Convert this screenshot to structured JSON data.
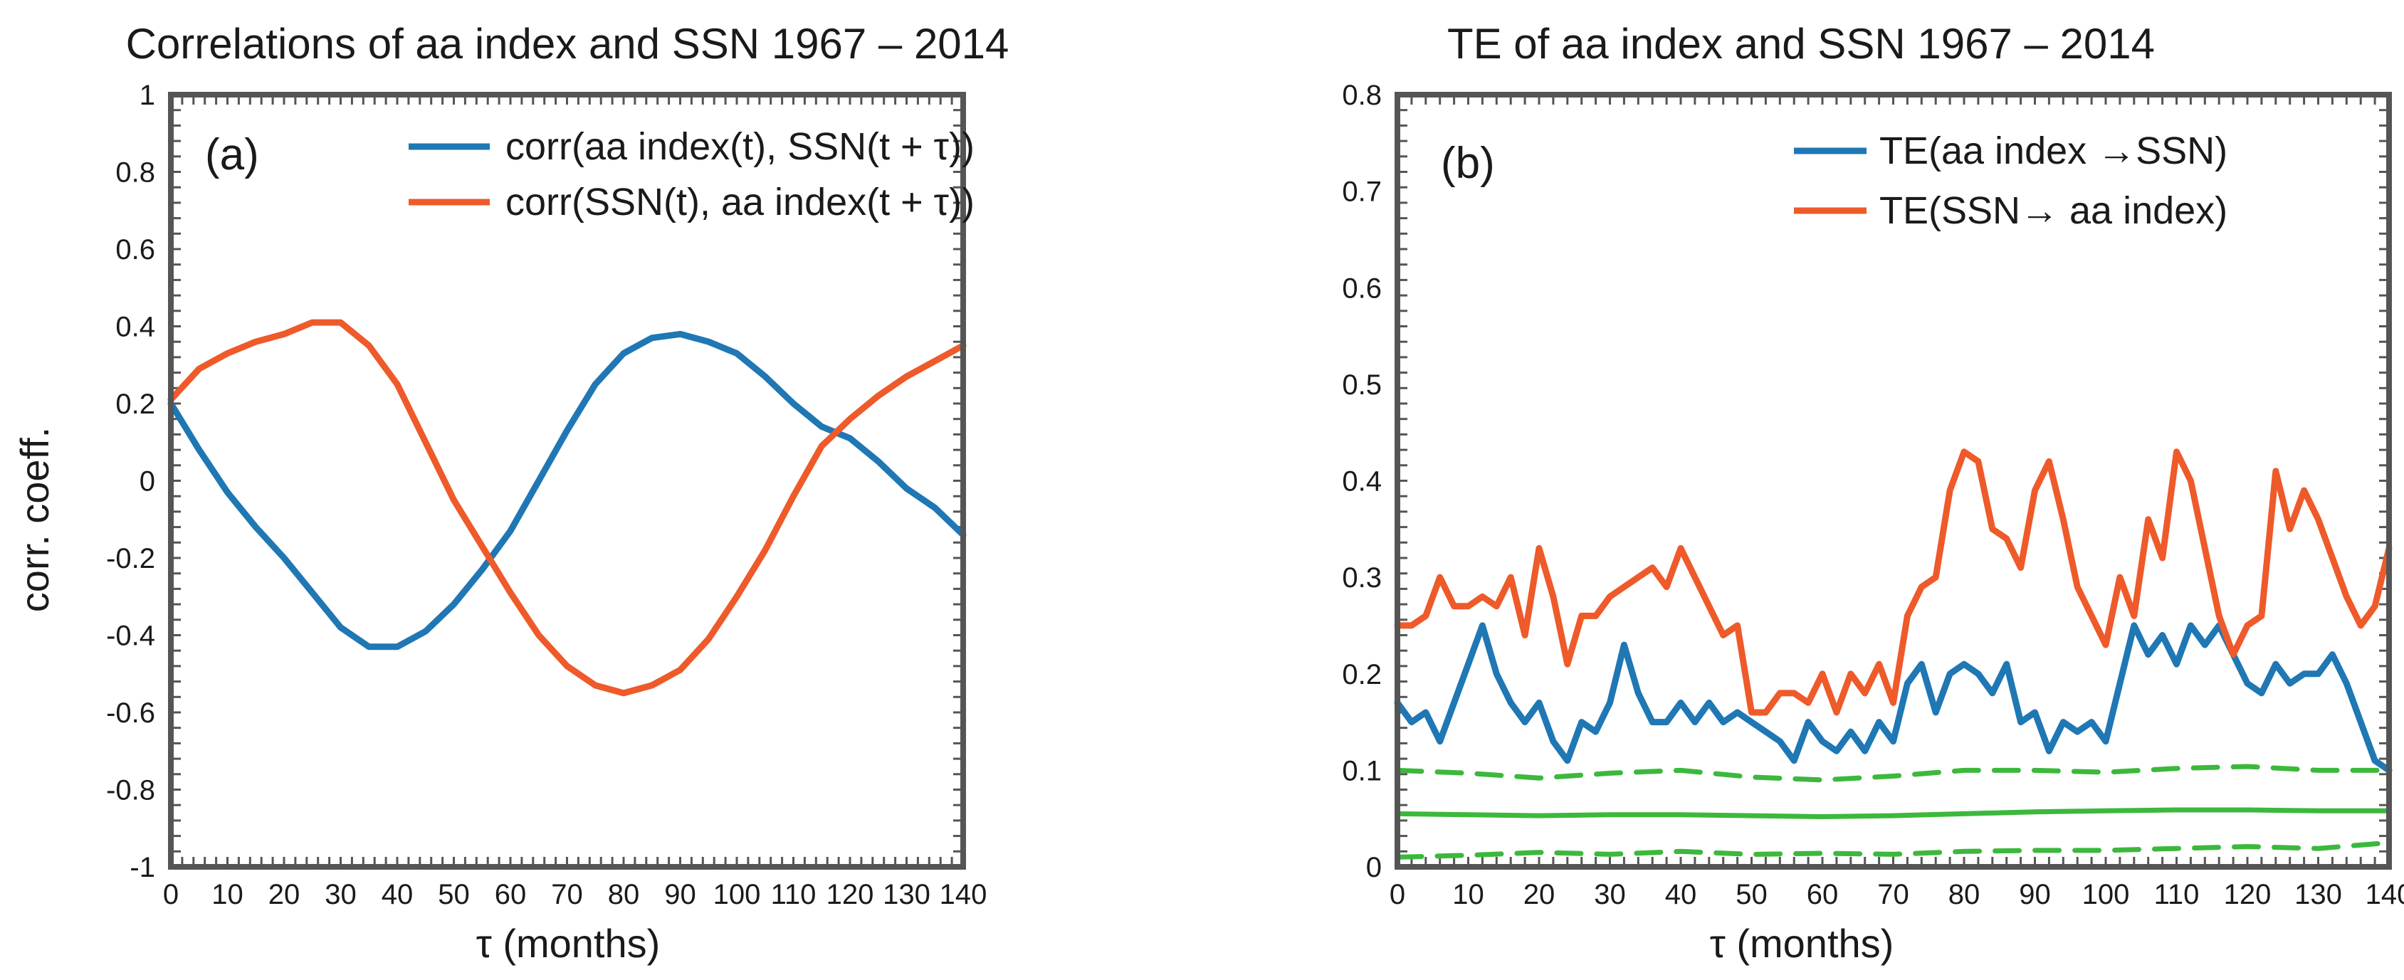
{
  "chart_data": [
    {
      "type": "line",
      "panel_label": "(a)",
      "title": "Correlations of aa index and SSN  1967 – 2014",
      "xlabel": "τ (months)",
      "ylabel": "corr. coeff.",
      "xlim": [
        0,
        140
      ],
      "ylim": [
        -1,
        1
      ],
      "xticks": [
        "0",
        "10",
        "20",
        "30",
        "40",
        "50",
        "60",
        "70",
        "80",
        "90",
        "100",
        "110",
        "120",
        "130",
        "140"
      ],
      "yticks": [
        "1",
        "0.8",
        "0.6",
        "0.4",
        "0.2",
        "0",
        "-0.2",
        "-0.4",
        "-0.6",
        "-0.8",
        "-1"
      ],
      "legend_position": "top-right",
      "series": [
        {
          "name": "corr(aa index(t), SSN(t + τ))",
          "color": "#1f77b4",
          "x": [
            0,
            5,
            10,
            15,
            20,
            25,
            30,
            35,
            40,
            45,
            50,
            55,
            60,
            65,
            70,
            75,
            80,
            85,
            90,
            95,
            100,
            105,
            110,
            115,
            120,
            125,
            130,
            135,
            140
          ],
          "y": [
            0.2,
            0.08,
            -0.03,
            -0.12,
            -0.2,
            -0.29,
            -0.38,
            -0.43,
            -0.43,
            -0.39,
            -0.32,
            -0.23,
            -0.13,
            0.0,
            0.13,
            0.25,
            0.33,
            0.37,
            0.38,
            0.36,
            0.33,
            0.27,
            0.2,
            0.14,
            0.11,
            0.05,
            -0.02,
            -0.07,
            -0.14
          ]
        },
        {
          "name": "corr(SSN(t), aa index(t + τ))",
          "color": "#ee5a2a",
          "x": [
            0,
            5,
            10,
            15,
            20,
            25,
            30,
            35,
            40,
            45,
            50,
            55,
            60,
            65,
            70,
            75,
            80,
            85,
            90,
            95,
            100,
            105,
            110,
            115,
            120,
            125,
            130,
            135,
            140
          ],
          "y": [
            0.21,
            0.29,
            0.33,
            0.36,
            0.38,
            0.41,
            0.41,
            0.35,
            0.25,
            0.1,
            -0.05,
            -0.17,
            -0.29,
            -0.4,
            -0.48,
            -0.53,
            -0.55,
            -0.53,
            -0.49,
            -0.41,
            -0.3,
            -0.18,
            -0.04,
            0.09,
            0.16,
            0.22,
            0.27,
            0.31,
            0.35
          ]
        }
      ]
    },
    {
      "type": "line",
      "panel_label": "(b)",
      "title": "TE of aa index and SSN 1967 – 2014",
      "xlabel": "τ (months)",
      "ylabel": "",
      "xlim": [
        0,
        140
      ],
      "ylim": [
        0,
        0.8
      ],
      "xticks": [
        "0",
        "10",
        "20",
        "30",
        "40",
        "50",
        "60",
        "70",
        "80",
        "90",
        "100",
        "110",
        "120",
        "130",
        "140"
      ],
      "yticks": [
        "0.8",
        "0.7",
        "0.6",
        "0.5",
        "0.4",
        "0.3",
        "0.2",
        "0.1",
        "0"
      ],
      "legend_position": "top-right",
      "series": [
        {
          "name": "TE(aa index →SSN)",
          "color": "#1f77b4",
          "x": [
            0,
            2,
            4,
            6,
            8,
            10,
            12,
            14,
            16,
            18,
            20,
            22,
            24,
            26,
            28,
            30,
            32,
            34,
            36,
            38,
            40,
            42,
            44,
            46,
            48,
            50,
            52,
            54,
            56,
            58,
            60,
            62,
            64,
            66,
            68,
            70,
            72,
            74,
            76,
            78,
            80,
            82,
            84,
            86,
            88,
            90,
            92,
            94,
            96,
            98,
            100,
            102,
            104,
            106,
            108,
            110,
            112,
            114,
            116,
            118,
            120,
            122,
            124,
            126,
            128,
            130,
            132,
            134,
            136,
            138,
            140
          ],
          "y": [
            0.17,
            0.15,
            0.16,
            0.13,
            0.17,
            0.21,
            0.25,
            0.2,
            0.17,
            0.15,
            0.17,
            0.13,
            0.11,
            0.15,
            0.14,
            0.17,
            0.23,
            0.18,
            0.15,
            0.15,
            0.17,
            0.15,
            0.17,
            0.15,
            0.16,
            0.15,
            0.14,
            0.13,
            0.11,
            0.15,
            0.13,
            0.12,
            0.14,
            0.12,
            0.15,
            0.13,
            0.19,
            0.21,
            0.16,
            0.2,
            0.21,
            0.2,
            0.18,
            0.21,
            0.15,
            0.16,
            0.12,
            0.15,
            0.14,
            0.15,
            0.13,
            0.19,
            0.25,
            0.22,
            0.24,
            0.21,
            0.25,
            0.23,
            0.25,
            0.22,
            0.19,
            0.18,
            0.21,
            0.19,
            0.2,
            0.2,
            0.22,
            0.19,
            0.15,
            0.11,
            0.1
          ]
        },
        {
          "name": "TE(SSN→ aa index)",
          "color": "#ee5a2a",
          "x": [
            0,
            2,
            4,
            6,
            8,
            10,
            12,
            14,
            16,
            18,
            20,
            22,
            24,
            26,
            28,
            30,
            32,
            34,
            36,
            38,
            40,
            42,
            44,
            46,
            48,
            50,
            52,
            54,
            56,
            58,
            60,
            62,
            64,
            66,
            68,
            70,
            72,
            74,
            76,
            78,
            80,
            82,
            84,
            86,
            88,
            90,
            92,
            94,
            96,
            98,
            100,
            102,
            104,
            106,
            108,
            110,
            112,
            114,
            116,
            118,
            120,
            122,
            124,
            126,
            128,
            130,
            132,
            134,
            136,
            138,
            140
          ],
          "y": [
            0.25,
            0.25,
            0.26,
            0.3,
            0.27,
            0.27,
            0.28,
            0.27,
            0.3,
            0.24,
            0.33,
            0.28,
            0.21,
            0.26,
            0.26,
            0.28,
            0.29,
            0.3,
            0.31,
            0.29,
            0.33,
            0.3,
            0.27,
            0.24,
            0.25,
            0.16,
            0.16,
            0.18,
            0.18,
            0.17,
            0.2,
            0.16,
            0.2,
            0.18,
            0.21,
            0.17,
            0.26,
            0.29,
            0.3,
            0.39,
            0.43,
            0.42,
            0.35,
            0.34,
            0.31,
            0.39,
            0.42,
            0.36,
            0.29,
            0.26,
            0.23,
            0.3,
            0.26,
            0.36,
            0.32,
            0.43,
            0.4,
            0.33,
            0.26,
            0.22,
            0.25,
            0.26,
            0.41,
            0.35,
            0.39,
            0.36,
            0.32,
            0.28,
            0.25,
            0.27,
            0.33
          ]
        },
        {
          "name": "significance upper",
          "color": "#3cb83c",
          "dashed": true,
          "x": [
            0,
            10,
            20,
            30,
            40,
            50,
            60,
            70,
            80,
            90,
            100,
            110,
            120,
            130,
            140
          ],
          "y": [
            0.1,
            0.097,
            0.092,
            0.097,
            0.1,
            0.093,
            0.09,
            0.094,
            0.1,
            0.1,
            0.098,
            0.102,
            0.104,
            0.1,
            0.1
          ]
        },
        {
          "name": "significance mean",
          "color": "#3cb83c",
          "dashed": false,
          "x": [
            0,
            10,
            20,
            30,
            40,
            50,
            60,
            70,
            80,
            90,
            100,
            110,
            120,
            130,
            140
          ],
          "y": [
            0.055,
            0.054,
            0.053,
            0.054,
            0.054,
            0.053,
            0.052,
            0.053,
            0.055,
            0.057,
            0.058,
            0.059,
            0.059,
            0.058,
            0.058
          ]
        },
        {
          "name": "significance lower",
          "color": "#3cb83c",
          "dashed": true,
          "x": [
            0,
            10,
            20,
            30,
            40,
            50,
            60,
            70,
            80,
            90,
            100,
            110,
            120,
            130,
            140
          ],
          "y": [
            0.01,
            0.012,
            0.015,
            0.013,
            0.016,
            0.013,
            0.014,
            0.013,
            0.016,
            0.017,
            0.017,
            0.019,
            0.021,
            0.019,
            0.025
          ]
        }
      ]
    }
  ]
}
